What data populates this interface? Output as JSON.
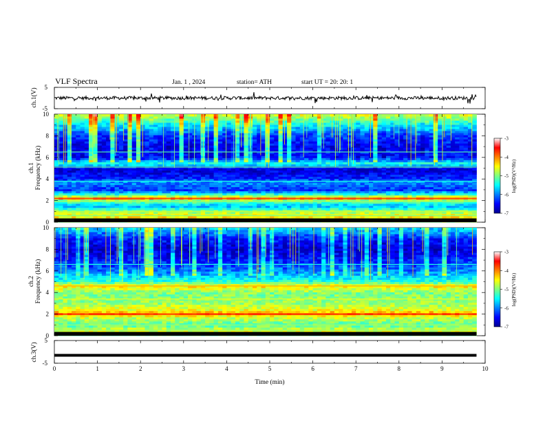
{
  "header": {
    "title": "VLF  Spectra",
    "date": "Jan.  1  , 2024",
    "station": "station= ATH",
    "start": "start  UT  =    20: 20: 1"
  },
  "chart_data": [
    {
      "type": "line",
      "name": "ch1-waveform",
      "ylabel": "ch.1(V)",
      "ylim": [
        -5,
        5
      ],
      "yticks": [
        "5",
        "-5"
      ],
      "xlim": [
        0,
        10
      ],
      "baseline_value": 0,
      "trace_color": "#000000"
    },
    {
      "type": "heatmap",
      "name": "ch1-spectrogram",
      "ylabel_channel": "ch.1",
      "ylabel": "Frequency  (kHz)",
      "ylim": [
        0,
        10
      ],
      "yticks": [
        "0",
        "2",
        "4",
        "6",
        "8",
        "10"
      ],
      "xlim": [
        0,
        10
      ],
      "data_end_min": 9.8,
      "colorbar": {
        "label": "log(PSD)(V²/Hz)",
        "range": [
          -7,
          -3
        ],
        "ticks": [
          "-3",
          "-4",
          "-5",
          "-6",
          "-7"
        ]
      },
      "profile_khz": [
        [
          0,
          -5.0
        ],
        [
          0.5,
          -4.4
        ],
        [
          1,
          -4.9
        ],
        [
          1.5,
          -5.8
        ],
        [
          2,
          -5.0
        ],
        [
          2.2,
          -3.9
        ],
        [
          2.5,
          -5.2
        ],
        [
          3,
          -6.3
        ],
        [
          3.8,
          -5.9
        ],
        [
          4,
          -6.4
        ],
        [
          5,
          -6.7
        ],
        [
          5.4,
          -5.3
        ],
        [
          6,
          -6.5
        ],
        [
          7,
          -6.6
        ],
        [
          8,
          -6.3
        ],
        [
          9,
          -5.6
        ],
        [
          10,
          -4.6
        ]
      ],
      "lines_khz": [
        [
          5.1,
          -5.1
        ],
        [
          3.8,
          -5.4
        ],
        [
          2.2,
          -3.8
        ],
        [
          1.9,
          -4.9
        ],
        [
          1.0,
          -4.7
        ],
        [
          0.6,
          -5.0
        ],
        [
          0.3,
          -4.8
        ],
        [
          6.5,
          -5.2
        ]
      ]
    },
    {
      "type": "heatmap",
      "name": "ch2-spectrogram",
      "ylabel_channel": "ch.2",
      "ylabel": "Frequency  (kHz)",
      "ylim": [
        0,
        10
      ],
      "yticks": [
        "0",
        "2",
        "4",
        "6",
        "8",
        "10"
      ],
      "xlim": [
        0,
        10
      ],
      "data_end_min": 9.8,
      "colorbar": {
        "label": "log(PSD)(V²/Hz)",
        "range": [
          -7,
          -3
        ],
        "ticks": [
          "-3",
          "-4",
          "-5",
          "-6",
          "-7"
        ]
      },
      "profile_khz": [
        [
          0,
          -5.2
        ],
        [
          0.5,
          -4.6
        ],
        [
          1,
          -5.2
        ],
        [
          1.8,
          -4.6
        ],
        [
          2,
          -3.9
        ],
        [
          2.3,
          -4.5
        ],
        [
          3,
          -4.9
        ],
        [
          4,
          -5.0
        ],
        [
          4.6,
          -4.4
        ],
        [
          5,
          -5.3
        ],
        [
          6,
          -6.0
        ],
        [
          7,
          -6.4
        ],
        [
          8,
          -6.7
        ],
        [
          9,
          -6.4
        ],
        [
          10,
          -5.6
        ]
      ],
      "lines_khz": [
        [
          2.0,
          -3.6
        ],
        [
          4.6,
          -4.2
        ],
        [
          1.0,
          -4.8
        ],
        [
          3.4,
          -4.6
        ],
        [
          0.5,
          -4.9
        ],
        [
          6.6,
          -5.4
        ]
      ]
    },
    {
      "type": "line",
      "name": "ch3-waveform",
      "ylabel": "ch.3(V)",
      "ylim": [
        -5,
        5
      ],
      "yticks": [
        "5",
        "-5"
      ],
      "xlim": [
        0,
        10
      ],
      "baseline_value": -1.5,
      "xlabel": "Time  (min)",
      "xticks": [
        "0",
        "1",
        "2",
        "3",
        "4",
        "5",
        "6",
        "7",
        "8",
        "9",
        "10"
      ],
      "trace_color": "#000000"
    }
  ]
}
